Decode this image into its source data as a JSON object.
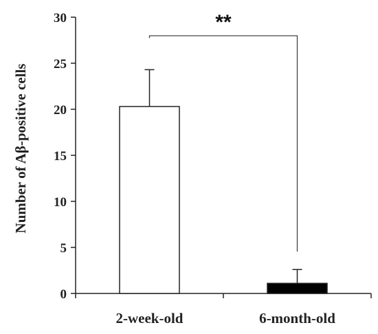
{
  "chart_data": {
    "type": "bar",
    "categories": [
      "2-week-old",
      "6-month-old"
    ],
    "values": [
      20.3,
      1.1
    ],
    "error_plus": [
      4.0,
      1.5
    ],
    "bar_colors": [
      "#ffffff",
      "#000000"
    ],
    "ylabel": "Number of Aβ-positive cells",
    "ylim": [
      0,
      30
    ],
    "yticks": [
      0,
      5,
      10,
      15,
      20,
      25,
      30
    ],
    "significance": {
      "label": "**",
      "between": [
        0,
        1
      ]
    }
  }
}
